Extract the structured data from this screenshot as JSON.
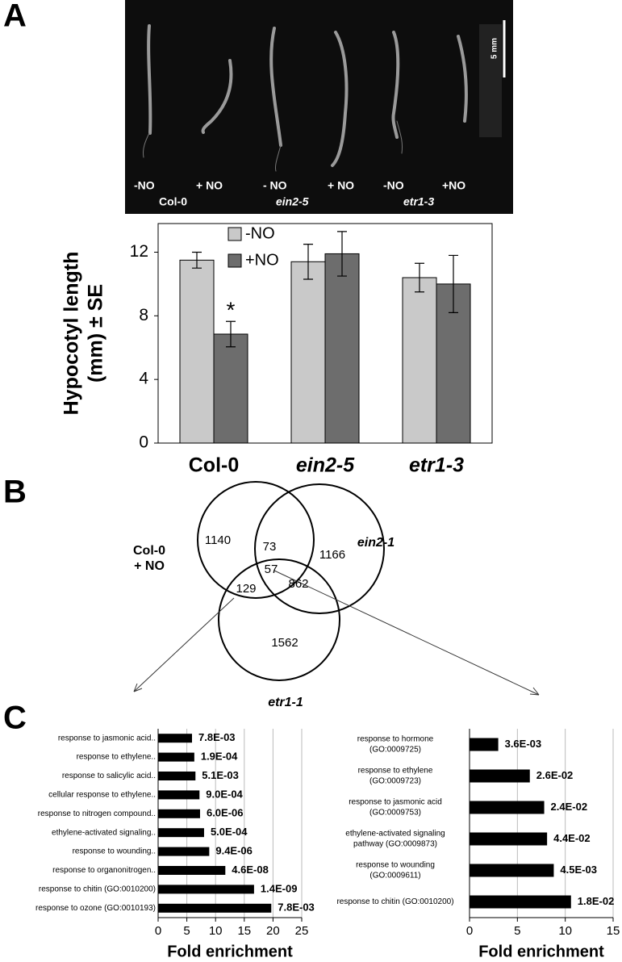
{
  "panel_labels": [
    "A",
    "B",
    "C"
  ],
  "photo": {
    "treatments": [
      "-NO",
      "+ NO",
      "- NO",
      "+ NO",
      "-NO",
      "+NO"
    ],
    "genotypes": [
      "Col-0",
      "ein2-5",
      "etr1-3"
    ],
    "scale_bar": "5 mm"
  },
  "chart_data": [
    {
      "type": "bar",
      "ylabel": [
        "Hypocotyl length",
        "(mm) ± SE"
      ],
      "categories": [
        "Col-0",
        "ein2-5",
        "etr1-3"
      ],
      "series": [
        {
          "name": "-NO",
          "color": "#c9c9c9",
          "values": [
            11.5,
            11.4,
            10.4
          ],
          "errors": [
            0.5,
            1.1,
            0.9
          ]
        },
        {
          "name": "+NO",
          "color": "#6d6d6d",
          "values": [
            6.85,
            11.9,
            10.0
          ],
          "errors": [
            0.8,
            1.4,
            1.8
          ]
        }
      ],
      "annotation": "*",
      "ylim": [
        0,
        13.8
      ],
      "yticks": [
        0,
        4,
        8,
        12
      ],
      "legend": "top-left"
    },
    {
      "type": "venn",
      "sets": [
        [
          "Col-0",
          "+ NO"
        ],
        [
          "ein2-1"
        ],
        [
          "etr1-1"
        ]
      ],
      "values": [
        1140,
        1166,
        1562,
        73,
        129,
        862,
        57
      ]
    },
    {
      "type": "barh",
      "categories": [
        "response to jasmonic acid..",
        "response to ethylene..",
        "response to salicylic acid..",
        "cellular response to ethylene..",
        "response to nitrogen compound..",
        "ethylene-activated signaling..",
        "response to wounding..",
        "response to organonitrogen..",
        "response to chitin (GO:0010200)",
        "response to ozone (GO:0010193)"
      ],
      "values": [
        5.9,
        6.3,
        6.5,
        7.2,
        7.3,
        8.0,
        8.9,
        11.7,
        16.7,
        19.7
      ],
      "annotations": [
        "7.8E-03",
        "1.9E-04",
        "5.1E-03",
        "9.0E-04",
        "6.0E-06",
        "5.0E-04",
        "9.4E-06",
        "4.6E-08",
        "1.4E-09",
        "7.8E-03"
      ],
      "color": "#000000",
      "xlabel": "Fold enrichment",
      "xlim": [
        0,
        25
      ],
      "xticks": [
        0,
        5,
        10,
        15,
        20,
        25
      ],
      "grid": true
    },
    {
      "type": "barh",
      "categories": [
        [
          "response to hormone",
          "(GO:0009725)"
        ],
        [
          "response to ethylene",
          "(GO:0009723)"
        ],
        [
          "response to jasmonic acid",
          "(GO:0009753)"
        ],
        [
          "ethylene-activated signaling",
          "pathway (GO:0009873)"
        ],
        [
          "response to wounding",
          "(GO:0009611)"
        ],
        [
          "response to chitin (GO:0010200)"
        ]
      ],
      "values": [
        3.0,
        6.3,
        7.8,
        8.1,
        8.8,
        10.6
      ],
      "annotations": [
        "3.6E-03",
        "2.6E-02",
        "2.4E-02",
        "4.4E-02",
        "4.5E-03",
        "1.8E-02"
      ],
      "color": "#000000",
      "xlabel": "Fold enrichment",
      "xlim": [
        0,
        15
      ],
      "xticks": [
        0,
        5,
        10,
        15
      ],
      "grid": true
    }
  ]
}
